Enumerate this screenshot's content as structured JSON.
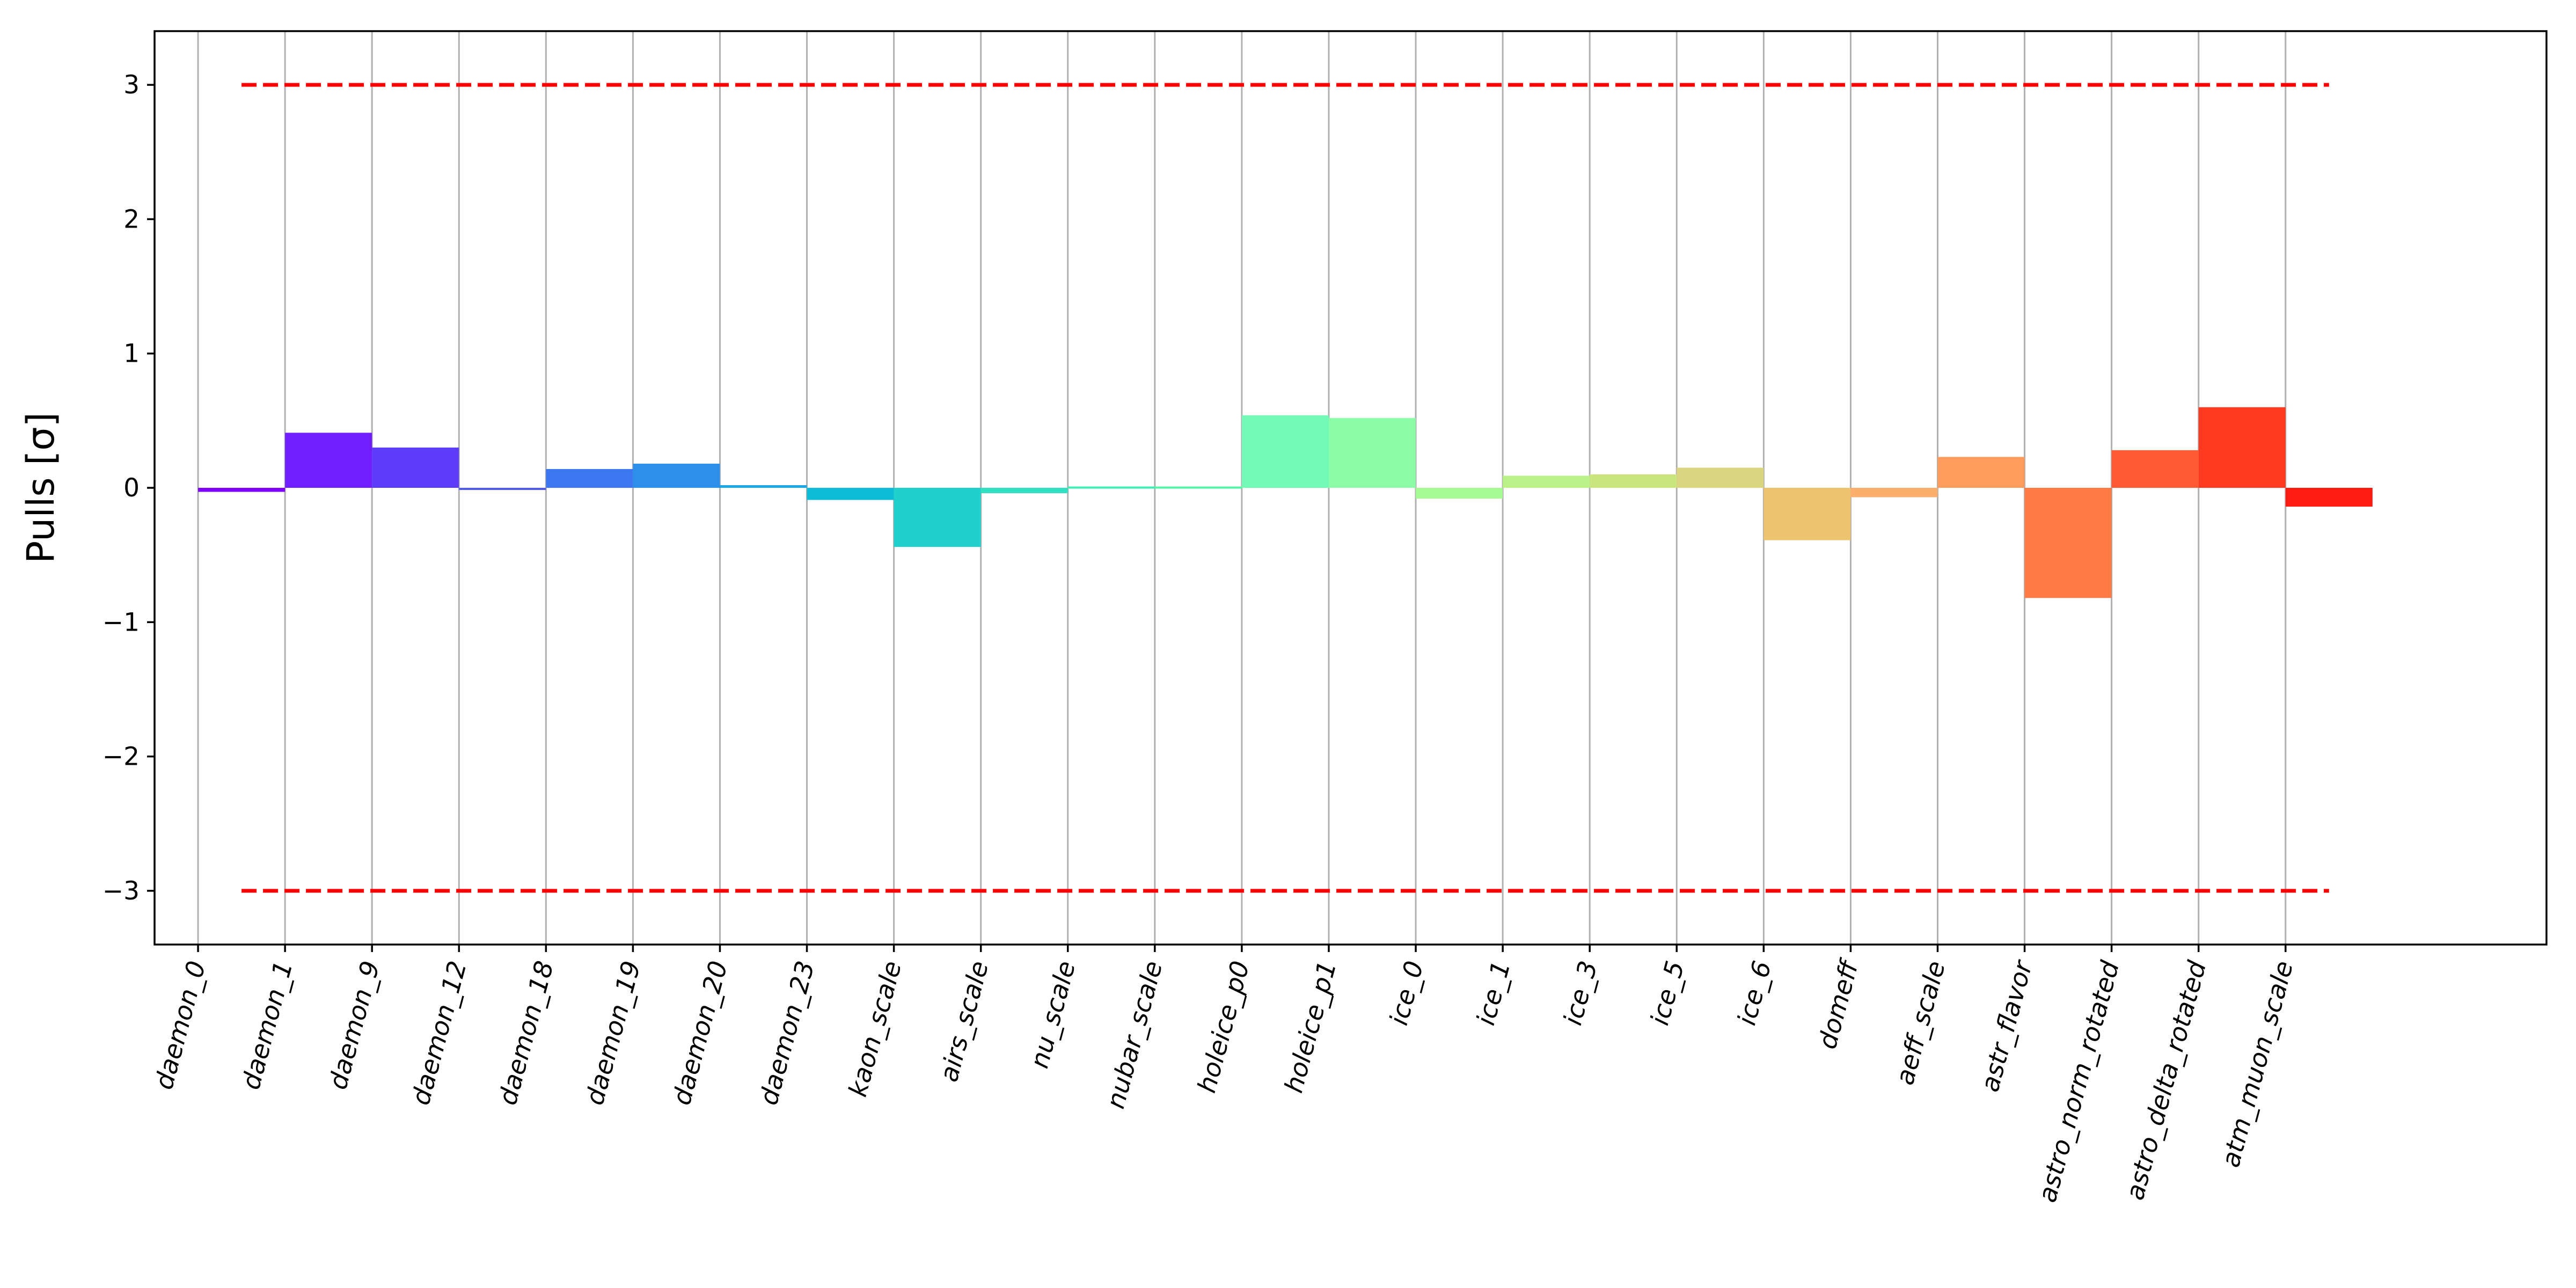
{
  "chart_data": {
    "type": "bar",
    "title": "",
    "xlabel": "",
    "ylabel": "Pulls [σ]",
    "ylim": [
      -3.4,
      3.4
    ],
    "yticks": [
      -3,
      -2,
      -1,
      0,
      1,
      2,
      3
    ],
    "ytick_labels": [
      "−3",
      "−2",
      "−1",
      "0",
      "1",
      "2",
      "3"
    ],
    "xlim": [
      -0.5,
      27.0
    ],
    "grid": "vertical",
    "bar_alignment": "left-edge-at-category",
    "categories": [
      "daemon_0",
      "daemon_1",
      "daemon_9",
      "daemon_12",
      "daemon_18",
      "daemon_19",
      "daemon_20",
      "daemon_23",
      "kaon_scale",
      "airs_scale",
      "nu_scale",
      "nubar_scale",
      "holeice_p0",
      "holeice_p1",
      "ice_0",
      "ice_1",
      "ice_3",
      "ice_5",
      "ice_6",
      "domeff",
      "aeff_scale",
      "astr_flavor",
      "astro_norm_rotated",
      "astro_delta_rotated",
      "atm_muon_scale"
    ],
    "values": [
      -0.03,
      0.41,
      0.3,
      -0.01,
      0.14,
      0.18,
      0.02,
      -0.09,
      -0.44,
      -0.04,
      0.01,
      0.01,
      0.54,
      0.52,
      -0.08,
      0.09,
      0.1,
      0.15,
      -0.39,
      -0.07,
      0.23,
      -0.82,
      0.28,
      0.6,
      -0.14
    ],
    "colors": [
      "#8000ff",
      "#6f1efe",
      "#5e3cfc",
      "#4e5af8",
      "#3c76f2",
      "#2c90eb",
      "#1ca6e2",
      "#0cbcd8",
      "#1ed1cd",
      "#30e1c1",
      "#40ecb3",
      "#52f7a6",
      "#72fab6",
      "#8cfca7",
      "#a6fa91",
      "#baf287",
      "#cae47e",
      "#dcd580",
      "#eec370",
      "#fcae6c",
      "#ff9b5c",
      "#ff7a44",
      "#ff5a33",
      "#ff3a20",
      "#ff1a12"
    ],
    "reference_lines": [
      {
        "y": 3,
        "x_range": [
          0.5,
          24.5
        ],
        "color": "#ff0000",
        "style": "dashed"
      },
      {
        "y": -3,
        "x_range": [
          0.5,
          24.5
        ],
        "color": "#ff0000",
        "style": "dashed"
      }
    ]
  }
}
